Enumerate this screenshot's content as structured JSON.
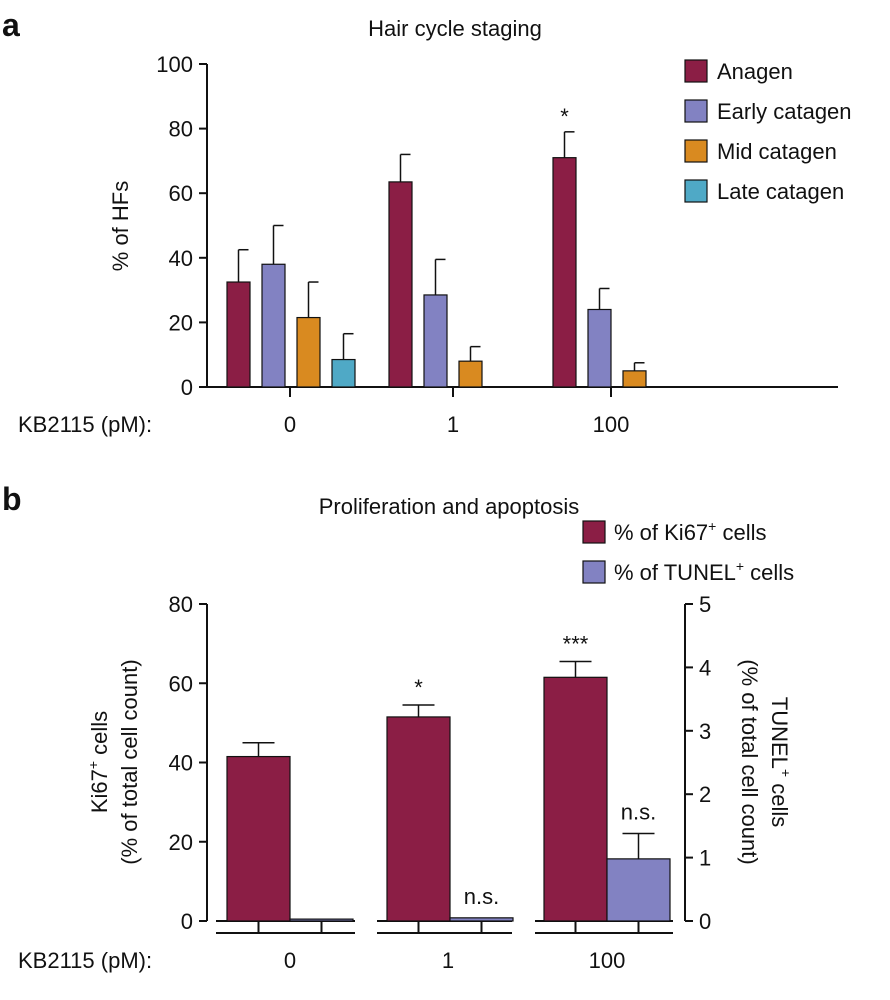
{
  "chart_data": [
    {
      "panel": "a",
      "type": "bar",
      "title": "Hair cycle staging",
      "xlabel": "KB2115 (pM):",
      "ylabel": "% of HFs",
      "categories": [
        "0",
        "1",
        "100"
      ],
      "ylim": [
        0,
        100
      ],
      "yticks": [
        "0",
        "20",
        "40",
        "60",
        "80",
        "100"
      ],
      "series": [
        {
          "name": "Anagen",
          "color": "#8B1E45",
          "values": [
            32.5,
            63.5,
            71
          ],
          "errors": [
            10,
            8.5,
            8
          ]
        },
        {
          "name": "Early catagen",
          "color": "#8282C2",
          "values": [
            38,
            28.5,
            24
          ],
          "errors": [
            12,
            11,
            6.5
          ]
        },
        {
          "name": "Mid catagen",
          "color": "#D98A20",
          "values": [
            21.5,
            8,
            5
          ],
          "errors": [
            11,
            4.5,
            2.5
          ]
        },
        {
          "name": "Late catagen",
          "color": "#4FA9C6",
          "values": [
            8.5,
            null,
            null
          ],
          "errors": [
            8,
            null,
            null
          ]
        }
      ],
      "annotations": [
        {
          "category": "100",
          "series": "Anagen",
          "text": "*"
        }
      ],
      "legend": "top-right"
    },
    {
      "panel": "b",
      "type": "bar",
      "title": "Proliferation and apoptosis",
      "xlabel": "KB2115 (pM):",
      "categories": [
        "0",
        "1",
        "100"
      ],
      "ylabel_left": {
        "main": "Ki67",
        "sup": "+",
        "rest": " cells",
        "line2": "(% of total cell count)"
      },
      "ylabel_right": {
        "main": "TUNEL",
        "sup": "+",
        "rest": " cells",
        "line2": "(% of total cell count)"
      },
      "ylim_left": [
        0,
        80
      ],
      "ylim_right": [
        0,
        5
      ],
      "yticks_left": [
        "0",
        "20",
        "40",
        "60",
        "80"
      ],
      "yticks_right": [
        "0",
        "1",
        "2",
        "3",
        "4",
        "5"
      ],
      "series": [
        {
          "name": "% of Ki67",
          "sup": "+",
          "suffix": " cells",
          "axis": "left",
          "color": "#8B1E45",
          "values": [
            41.5,
            51.5,
            61.5
          ],
          "errors": [
            3.5,
            3,
            4
          ]
        },
        {
          "name": "% of TUNEL",
          "sup": "+",
          "suffix": " cells",
          "axis": "right",
          "color": "#8282C2",
          "values": [
            0.03,
            0.05,
            0.98
          ],
          "errors": [
            0,
            0,
            0.4
          ]
        }
      ],
      "annotations": [
        {
          "category": "1",
          "series": "% of Ki67",
          "text": "*"
        },
        {
          "category": "100",
          "series": "% of Ki67",
          "text": "***"
        },
        {
          "category": "1",
          "series": "% of TUNEL",
          "text": "n.s."
        },
        {
          "category": "100",
          "series": "% of TUNEL",
          "text": "n.s."
        }
      ],
      "legend": "top-right"
    }
  ]
}
